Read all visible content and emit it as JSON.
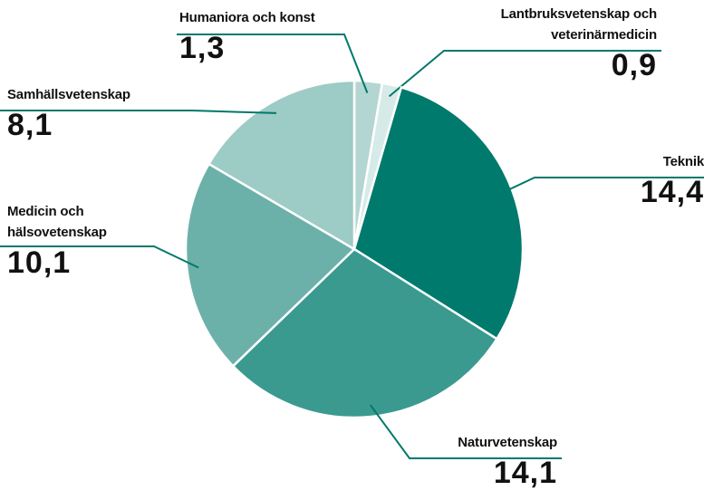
{
  "chart_data": {
    "type": "pie",
    "categories": [
      "Humaniora och konst",
      "Lantbruksvetenskap och veterinärmedicin",
      "Teknik",
      "Naturvetenskap",
      "Medicin och hälsovetenskap",
      "Samhällsvetenskap"
    ],
    "values": [
      1.3,
      0.9,
      14.4,
      14.1,
      10.1,
      8.1
    ],
    "value_labels": [
      "1,3",
      "0,9",
      "14,4",
      "14,1",
      "10,1",
      "8,1"
    ],
    "colors": [
      "#b3d6d2",
      "#d6ebe8",
      "#007a6d",
      "#3a9a90",
      "#6cb1a9",
      "#9dcbc5"
    ]
  }
}
